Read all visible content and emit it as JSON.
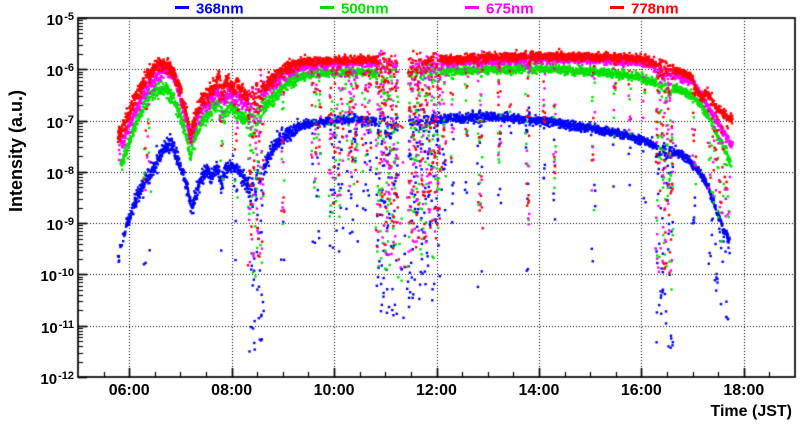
{
  "page": {
    "background": "#ffffff",
    "frame_color": "#000000",
    "grid_style": "dotted"
  },
  "legend": {
    "items": [
      {
        "label": "368nm",
        "color": "#0000ff",
        "x": 175
      },
      {
        "label": "500nm",
        "color": "#00e000",
        "x": 320
      },
      {
        "label": "675nm",
        "color": "#ff00ff",
        "x": 465
      },
      {
        "label": "778nm",
        "color": "#ff0000",
        "x": 610
      }
    ]
  },
  "chart_data": {
    "type": "scatter",
    "title": "",
    "xlabel": "Time (JST)",
    "ylabel": "Intensity (a.u.)",
    "x_axis": {
      "unit": "hours_JST",
      "lim": [
        5.0,
        19.0
      ],
      "major_ticks": [
        {
          "hour": 6,
          "label": "06:00"
        },
        {
          "hour": 8,
          "label": "08:00"
        },
        {
          "hour": 10,
          "label": "10:00"
        },
        {
          "hour": 12,
          "label": "12:00"
        },
        {
          "hour": 14,
          "label": "14:00"
        },
        {
          "hour": 16,
          "label": "16:00"
        },
        {
          "hour": 18,
          "label": "18:00"
        }
      ],
      "minor_tick_step_hours": 0.5,
      "grid_at_major": true
    },
    "y_axis": {
      "scale": "log10",
      "lim_exponents": [
        -12,
        -5
      ],
      "tick_exponents": [
        -5,
        -6,
        -7,
        -8,
        -9,
        -10,
        -11,
        -12
      ],
      "grid_at_decades": true
    },
    "series": [
      {
        "name": "368nm",
        "color": "#0000ff",
        "marker": "square",
        "t_start": 5.78,
        "t_end": 17.72,
        "sparse": [
          5.78,
          5.97,
          0.5
        ],
        "baseline": [
          [
            5.78,
            -9.7
          ],
          [
            5.87,
            -9.35
          ],
          [
            5.97,
            -9.0
          ],
          [
            6.07,
            -8.7
          ],
          [
            6.17,
            -8.45
          ],
          [
            6.27,
            -8.25
          ],
          [
            6.37,
            -8.1
          ],
          [
            6.47,
            -7.95
          ],
          [
            6.57,
            -7.75
          ],
          [
            6.67,
            -7.55
          ],
          [
            6.77,
            -7.45
          ],
          [
            6.87,
            -7.55
          ],
          [
            6.97,
            -7.8
          ],
          [
            7.07,
            -8.1
          ],
          [
            7.16,
            -8.45
          ],
          [
            7.23,
            -8.75
          ],
          [
            7.32,
            -8.35
          ],
          [
            7.42,
            -8.1
          ],
          [
            7.52,
            -8.0
          ],
          [
            7.62,
            -8.1
          ],
          [
            7.72,
            -7.95
          ],
          [
            7.8,
            -8.25
          ],
          [
            7.88,
            -7.95
          ],
          [
            8.0,
            -7.88
          ],
          [
            8.12,
            -7.98
          ],
          [
            8.3,
            -8.25
          ],
          [
            8.45,
            -8.3
          ],
          [
            8.6,
            -8.0
          ],
          [
            8.75,
            -7.65
          ],
          [
            8.9,
            -7.45
          ],
          [
            9.05,
            -7.3
          ],
          [
            9.2,
            -7.18
          ],
          [
            9.35,
            -7.1
          ],
          [
            9.5,
            -7.06
          ],
          [
            9.75,
            -7.02
          ],
          [
            10.0,
            -6.99
          ],
          [
            10.3,
            -6.97
          ],
          [
            10.7,
            -7.0
          ],
          [
            11.0,
            -7.05
          ],
          [
            11.5,
            -7.08
          ],
          [
            11.8,
            -7.0
          ],
          [
            12.1,
            -6.97
          ],
          [
            12.5,
            -6.95
          ],
          [
            12.9,
            -6.93
          ],
          [
            13.2,
            -6.93
          ],
          [
            13.6,
            -6.96
          ],
          [
            14.0,
            -7.0
          ],
          [
            14.4,
            -7.05
          ],
          [
            14.8,
            -7.12
          ],
          [
            15.2,
            -7.18
          ],
          [
            15.6,
            -7.27
          ],
          [
            15.9,
            -7.35
          ],
          [
            16.1,
            -7.42
          ],
          [
            16.25,
            -7.5
          ],
          [
            16.45,
            -7.62
          ],
          [
            16.6,
            -7.58
          ],
          [
            16.75,
            -7.65
          ],
          [
            16.9,
            -7.75
          ],
          [
            17.05,
            -7.9
          ],
          [
            17.2,
            -8.1
          ],
          [
            17.32,
            -8.35
          ],
          [
            17.45,
            -8.7
          ],
          [
            17.55,
            -9.0
          ],
          [
            17.65,
            -9.2
          ],
          [
            17.72,
            -9.35
          ]
        ]
      },
      {
        "name": "500nm",
        "color": "#00e000",
        "marker": "square",
        "t_start": 5.83,
        "t_end": 17.75,
        "baseline": [
          [
            5.83,
            -7.9
          ],
          [
            5.95,
            -7.6
          ],
          [
            6.1,
            -7.1
          ],
          [
            6.25,
            -6.8
          ],
          [
            6.4,
            -6.5
          ],
          [
            6.55,
            -6.4
          ],
          [
            6.7,
            -6.37
          ],
          [
            6.85,
            -6.55
          ],
          [
            7.0,
            -6.9
          ],
          [
            7.13,
            -7.35
          ],
          [
            7.2,
            -7.75
          ],
          [
            7.3,
            -7.25
          ],
          [
            7.45,
            -6.95
          ],
          [
            7.6,
            -6.82
          ],
          [
            7.75,
            -6.65
          ],
          [
            7.85,
            -6.95
          ],
          [
            7.95,
            -6.7
          ],
          [
            8.1,
            -6.8
          ],
          [
            8.2,
            -6.95
          ],
          [
            8.35,
            -7.0
          ],
          [
            8.5,
            -6.85
          ],
          [
            8.67,
            -6.7
          ],
          [
            8.9,
            -6.45
          ],
          [
            9.1,
            -6.25
          ],
          [
            9.3,
            -6.15
          ],
          [
            9.5,
            -6.1
          ],
          [
            9.75,
            -6.08
          ],
          [
            10.0,
            -6.08
          ],
          [
            10.5,
            -6.04
          ],
          [
            11.0,
            -6.08
          ],
          [
            11.5,
            -6.15
          ],
          [
            12.0,
            -6.05
          ],
          [
            12.5,
            -6.02
          ],
          [
            13.0,
            -6.0
          ],
          [
            13.5,
            -5.99
          ],
          [
            14.0,
            -5.99
          ],
          [
            14.5,
            -6.01
          ],
          [
            15.0,
            -6.04
          ],
          [
            15.5,
            -6.09
          ],
          [
            16.0,
            -6.16
          ],
          [
            16.2,
            -6.25
          ],
          [
            16.45,
            -6.35
          ],
          [
            16.7,
            -6.38
          ],
          [
            17.0,
            -6.5
          ],
          [
            17.2,
            -6.75
          ],
          [
            17.35,
            -7.0
          ],
          [
            17.5,
            -7.3
          ],
          [
            17.65,
            -7.6
          ],
          [
            17.75,
            -7.85
          ]
        ]
      },
      {
        "name": "675nm",
        "color": "#ff00ff",
        "marker": "square",
        "t_start": 5.8,
        "t_end": 17.78,
        "baseline": [
          [
            5.8,
            -7.5
          ],
          [
            5.95,
            -7.25
          ],
          [
            6.1,
            -6.85
          ],
          [
            6.25,
            -6.55
          ],
          [
            6.4,
            -6.3
          ],
          [
            6.55,
            -6.12
          ],
          [
            6.65,
            -6.0
          ],
          [
            6.8,
            -6.05
          ],
          [
            6.95,
            -6.35
          ],
          [
            7.1,
            -6.9
          ],
          [
            7.2,
            -7.4
          ],
          [
            7.3,
            -7.0
          ],
          [
            7.45,
            -6.7
          ],
          [
            7.6,
            -6.55
          ],
          [
            7.75,
            -6.45
          ],
          [
            7.85,
            -6.65
          ],
          [
            7.95,
            -6.45
          ],
          [
            8.1,
            -6.55
          ],
          [
            8.3,
            -6.7
          ],
          [
            8.5,
            -6.55
          ],
          [
            8.7,
            -6.4
          ],
          [
            8.9,
            -6.22
          ],
          [
            9.1,
            -6.07
          ],
          [
            9.3,
            -5.98
          ],
          [
            9.5,
            -5.93
          ],
          [
            10.0,
            -5.9
          ],
          [
            10.5,
            -5.88
          ],
          [
            11.0,
            -5.9
          ],
          [
            11.5,
            -5.95
          ],
          [
            12.0,
            -5.88
          ],
          [
            12.5,
            -5.85
          ],
          [
            13.0,
            -5.83
          ],
          [
            13.5,
            -5.82
          ],
          [
            14.0,
            -5.81
          ],
          [
            14.5,
            -5.81
          ],
          [
            15.0,
            -5.81
          ],
          [
            15.5,
            -5.83
          ],
          [
            16.0,
            -5.86
          ],
          [
            16.2,
            -5.92
          ],
          [
            16.45,
            -6.07
          ],
          [
            16.7,
            -6.12
          ],
          [
            17.0,
            -6.25
          ],
          [
            17.2,
            -6.55
          ],
          [
            17.35,
            -6.8
          ],
          [
            17.5,
            -7.05
          ],
          [
            17.65,
            -7.3
          ],
          [
            17.78,
            -7.5
          ]
        ]
      },
      {
        "name": "778nm",
        "color": "#ff0000",
        "marker": "square",
        "t_start": 5.78,
        "t_end": 17.78,
        "baseline": [
          [
            5.78,
            -7.3
          ],
          [
            5.9,
            -7.1
          ],
          [
            6.05,
            -6.7
          ],
          [
            6.2,
            -6.4
          ],
          [
            6.35,
            -6.12
          ],
          [
            6.5,
            -5.98
          ],
          [
            6.62,
            -5.9
          ],
          [
            6.75,
            -5.94
          ],
          [
            6.88,
            -6.1
          ],
          [
            7.0,
            -6.45
          ],
          [
            7.13,
            -6.95
          ],
          [
            7.2,
            -7.3
          ],
          [
            7.3,
            -6.9
          ],
          [
            7.42,
            -6.6
          ],
          [
            7.55,
            -6.45
          ],
          [
            7.68,
            -6.32
          ],
          [
            7.75,
            -6.15
          ],
          [
            7.82,
            -6.45
          ],
          [
            7.92,
            -6.2
          ],
          [
            8.0,
            -6.35
          ],
          [
            8.1,
            -6.25
          ],
          [
            8.2,
            -6.45
          ],
          [
            8.35,
            -6.55
          ],
          [
            8.5,
            -6.45
          ],
          [
            8.67,
            -6.35
          ],
          [
            8.8,
            -6.2
          ],
          [
            8.95,
            -6.05
          ],
          [
            9.1,
            -5.95
          ],
          [
            9.3,
            -5.88
          ],
          [
            9.5,
            -5.85
          ],
          [
            9.75,
            -5.84
          ],
          [
            10.0,
            -5.84
          ],
          [
            10.5,
            -5.8
          ],
          [
            11.0,
            -5.84
          ],
          [
            11.2,
            -5.88
          ],
          [
            11.5,
            -5.92
          ],
          [
            11.7,
            -5.88
          ],
          [
            12.0,
            -5.82
          ],
          [
            12.5,
            -5.79
          ],
          [
            13.0,
            -5.77
          ],
          [
            13.5,
            -5.76
          ],
          [
            14.0,
            -5.75
          ],
          [
            14.5,
            -5.75
          ],
          [
            15.0,
            -5.75
          ],
          [
            15.5,
            -5.76
          ],
          [
            16.0,
            -5.79
          ],
          [
            16.2,
            -5.85
          ],
          [
            16.35,
            -5.95
          ],
          [
            16.5,
            -6.0
          ],
          [
            16.7,
            -6.02
          ],
          [
            16.9,
            -6.1
          ],
          [
            17.0,
            -6.2
          ],
          [
            17.1,
            -6.45
          ],
          [
            17.2,
            -6.55
          ],
          [
            17.28,
            -6.45
          ],
          [
            17.38,
            -6.6
          ],
          [
            17.5,
            -6.8
          ],
          [
            17.6,
            -6.85
          ],
          [
            17.7,
            -6.95
          ],
          [
            17.78,
            -7.0
          ]
        ]
      }
    ],
    "dropouts": [
      {
        "t0": 6.27,
        "t1": 6.42,
        "depth": 2.2,
        "density": 0.18
      },
      {
        "t0": 7.75,
        "t1": 7.83,
        "depth": 1.3,
        "density": 0.25
      },
      {
        "t0": 8.05,
        "t1": 8.12,
        "depth": 1.8,
        "density": 0.25
      },
      {
        "t0": 8.32,
        "t1": 8.62,
        "depth": 3.2,
        "density": 0.5
      },
      {
        "t0": 8.97,
        "t1": 9.03,
        "depth": 2.7,
        "density": 0.45
      },
      {
        "t0": 9.55,
        "t1": 9.75,
        "depth": 2.3,
        "density": 0.3
      },
      {
        "t0": 9.9,
        "t1": 10.18,
        "depth": 2.7,
        "density": 0.4
      },
      {
        "t0": 10.22,
        "t1": 10.46,
        "depth": 2.3,
        "density": 0.35
      },
      {
        "t0": 10.55,
        "t1": 10.72,
        "depth": 2.0,
        "density": 0.3
      },
      {
        "t0": 10.82,
        "t1": 11.25,
        "depth": 3.7,
        "density": 0.75
      },
      {
        "t0": 11.45,
        "t1": 12.08,
        "depth": 3.5,
        "density": 0.65
      },
      {
        "t0": 12.1,
        "t1": 12.18,
        "depth": 2.0,
        "density": 0.35
      },
      {
        "t0": 12.28,
        "t1": 12.33,
        "depth": 2.0,
        "density": 0.4
      },
      {
        "t0": 12.56,
        "t1": 12.61,
        "depth": 1.4,
        "density": 0.35
      },
      {
        "t0": 12.8,
        "t1": 12.9,
        "depth": 3.3,
        "density": 0.5
      },
      {
        "t0": 13.2,
        "t1": 13.26,
        "depth": 1.8,
        "density": 0.4
      },
      {
        "t0": 13.42,
        "t1": 13.46,
        "depth": 1.0,
        "density": 0.3
      },
      {
        "t0": 13.74,
        "t1": 13.82,
        "depth": 3.1,
        "density": 0.5
      },
      {
        "t0": 14.08,
        "t1": 14.12,
        "depth": 1.2,
        "density": 0.3
      },
      {
        "t0": 14.28,
        "t1": 14.33,
        "depth": 2.2,
        "density": 0.4
      },
      {
        "t0": 15.03,
        "t1": 15.1,
        "depth": 2.7,
        "density": 0.45
      },
      {
        "t0": 15.45,
        "t1": 15.5,
        "depth": 1.1,
        "density": 0.3
      },
      {
        "t0": 15.75,
        "t1": 15.8,
        "depth": 1.5,
        "density": 0.35
      },
      {
        "t0": 16.03,
        "t1": 16.08,
        "depth": 1.3,
        "density": 0.3
      },
      {
        "t0": 16.28,
        "t1": 16.62,
        "depth": 3.9,
        "density": 0.6
      },
      {
        "t0": 17.0,
        "t1": 17.07,
        "depth": 1.6,
        "density": 0.3
      },
      {
        "t0": 17.3,
        "t1": 17.72,
        "depth": 1.5,
        "density": 0.25
      }
    ],
    "gaps": [
      {
        "t0": 11.25,
        "t1": 11.45
      }
    ],
    "extra_points": [
      {
        "series": "368nm",
        "t": 6.29,
        "log10": -9.8
      },
      {
        "series": "368nm",
        "t": 11.32,
        "log10": -9.9
      },
      {
        "series": "368nm",
        "t": 11.38,
        "log10": -9.6
      },
      {
        "series": "368nm",
        "t": 16.42,
        "log10": -10.3
      },
      {
        "series": "368nm",
        "t": 17.66,
        "log10": -10.83
      },
      {
        "series": "368nm",
        "t": 17.69,
        "log10": -10.87
      },
      {
        "series": "778nm",
        "t": 17.56,
        "log10": -8.6
      },
      {
        "series": "778nm",
        "t": 17.63,
        "log10": -8.1
      },
      {
        "series": "675nm",
        "t": 17.58,
        "log10": -8.8
      },
      {
        "series": "500nm",
        "t": 17.56,
        "log10": -9.35
      }
    ],
    "render_hints": {
      "sample_step_hours": 0.004,
      "noise_sigma_log_morning": 0.075,
      "noise_sigma_log_day": 0.042,
      "morning_end_hour": 9.3,
      "seed": 42
    }
  }
}
